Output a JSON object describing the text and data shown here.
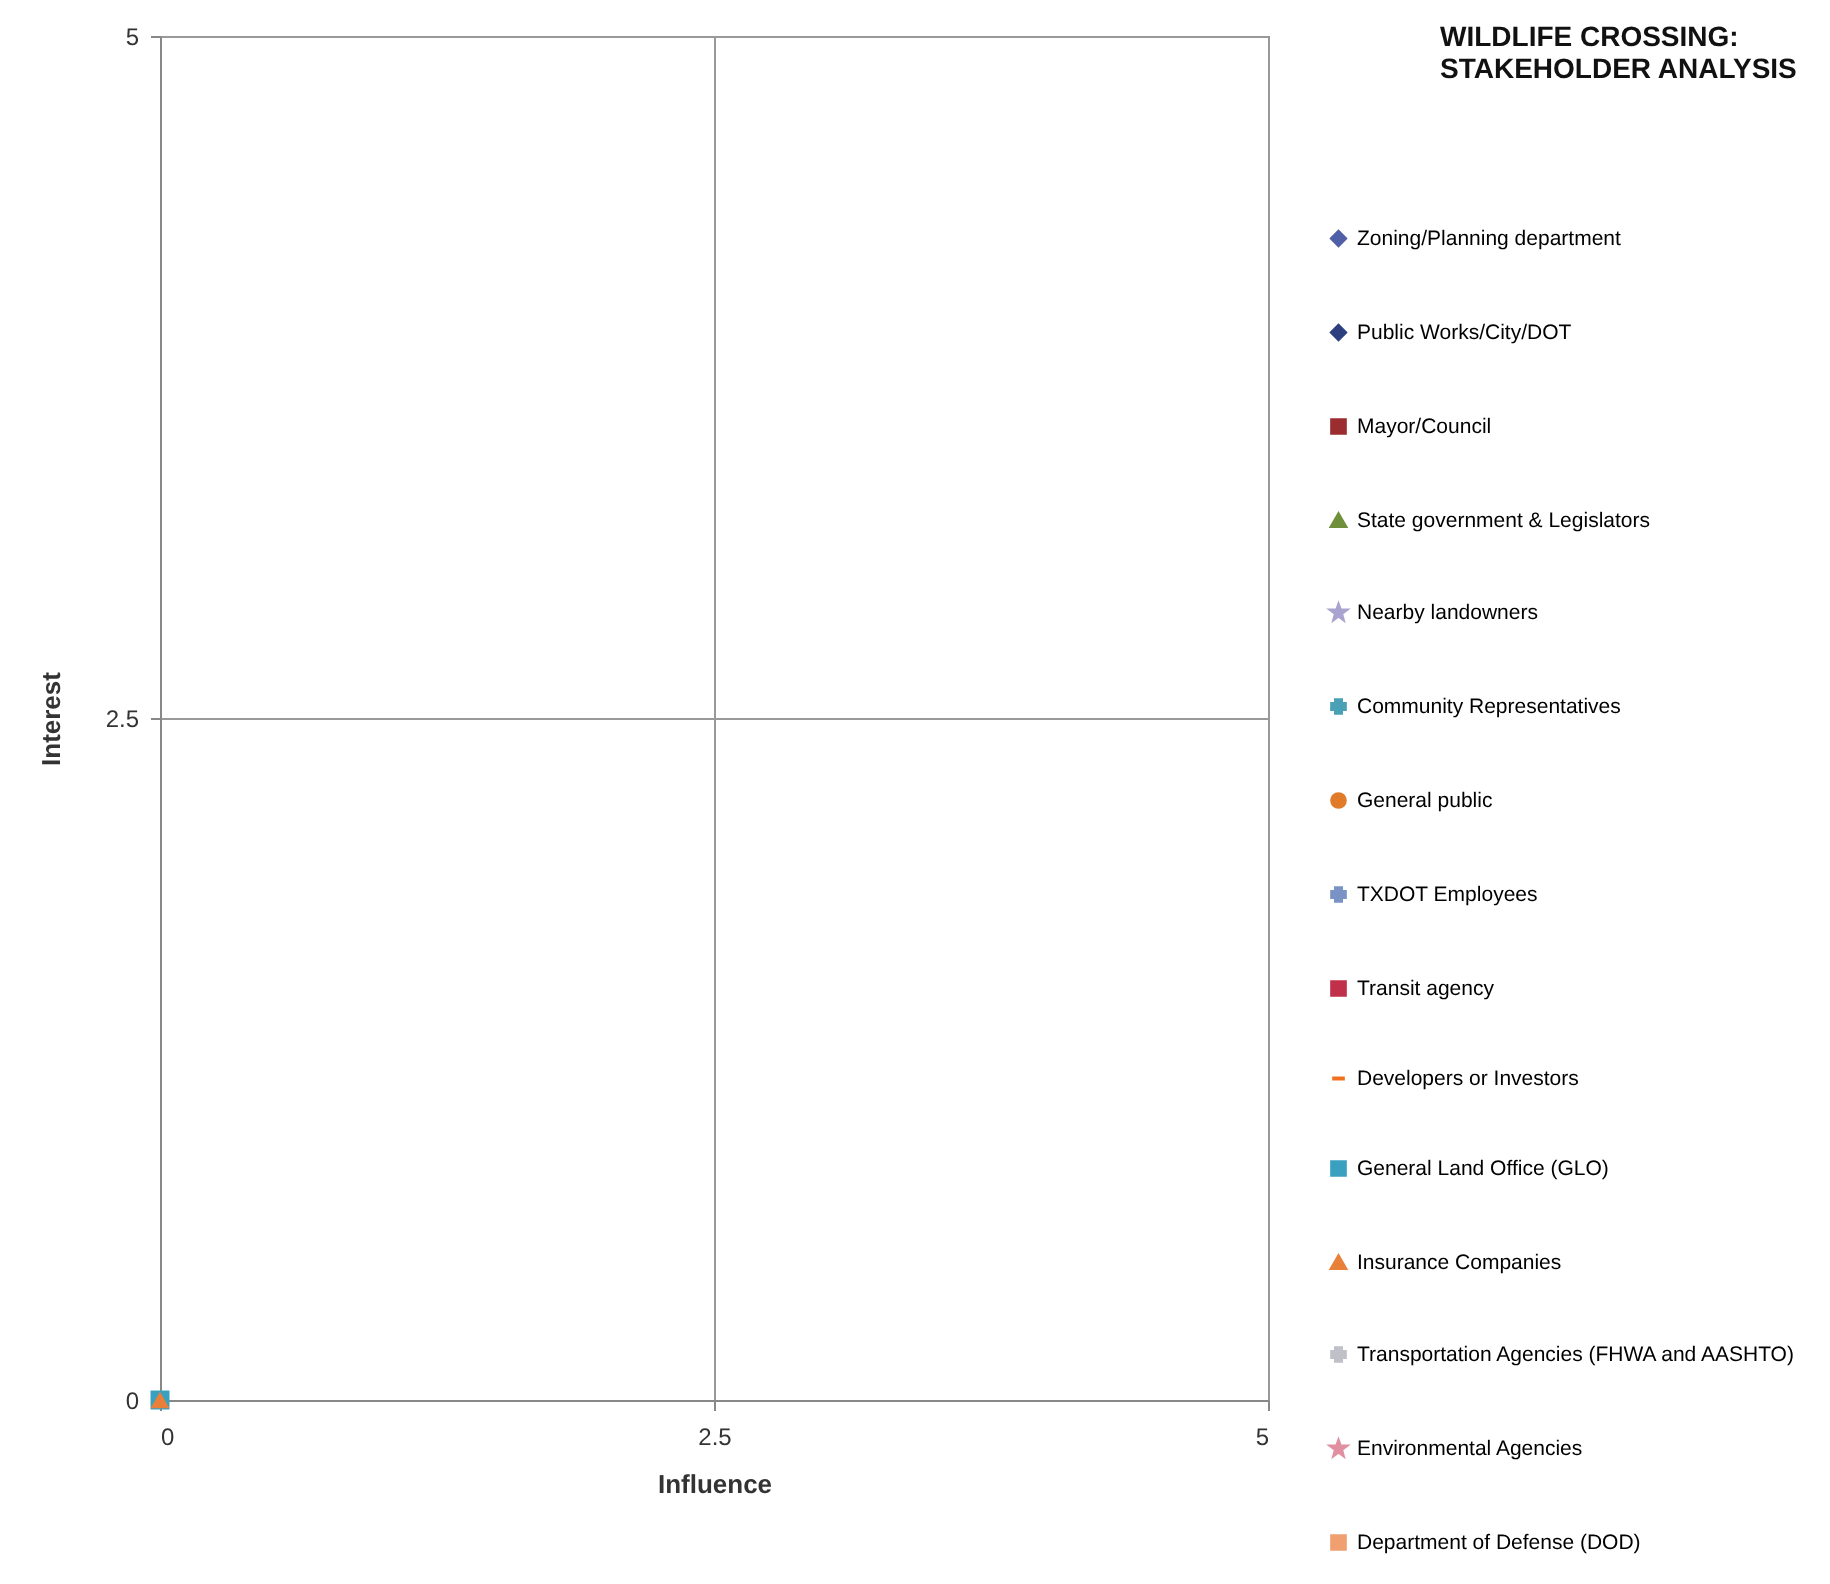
{
  "chart_data": {
    "type": "scatter",
    "title": "WILDLIFE CROSSING: STAKEHOLDER ANALYSIS",
    "xlabel": "Influence",
    "ylabel": "Interest",
    "x": [
      0
    ],
    "xlim": [
      0,
      5
    ],
    "xticks": [
      0,
      2.5,
      5
    ],
    "ylim": [
      0,
      5
    ],
    "yticks": [
      0,
      2.5,
      5
    ],
    "grid": true,
    "legend": "right",
    "series": [
      {
        "name": "Zoning/Planning department",
        "color": "#4f5fa8",
        "marker": "diamond",
        "values": [
          null
        ]
      },
      {
        "name": "Public Works/City/DOT",
        "color": "#2e3f7f",
        "marker": "diamond",
        "values": [
          null
        ]
      },
      {
        "name": "Mayor/Council",
        "color": "#9b2d30",
        "marker": "square",
        "values": [
          null
        ]
      },
      {
        "name": "State government & Legislators",
        "color": "#6f8f3a",
        "marker": "triangle",
        "values": [
          null
        ]
      },
      {
        "name": "Nearby landowners",
        "color": "#a9a3d0",
        "marker": "star",
        "values": [
          null
        ]
      },
      {
        "name": "Community Representatives",
        "color": "#4aa0b5",
        "marker": "cross",
        "values": [
          null
        ]
      },
      {
        "name": "General public",
        "color": "#e07b2a",
        "marker": "circle",
        "values": [
          null
        ]
      },
      {
        "name": "TXDOT Employees",
        "color": "#7a93c4",
        "marker": "cross",
        "values": [
          null
        ]
      },
      {
        "name": "Transit agency",
        "color": "#c0304a",
        "marker": "square",
        "values": [
          null
        ]
      },
      {
        "name": "Developers or Investors",
        "color": "#f07020",
        "type": "line",
        "marker": "none",
        "values": [
          null
        ]
      },
      {
        "name": "General Land Office (GLO)",
        "color": "#3aa0c0",
        "marker": "square",
        "values": [
          0
        ]
      },
      {
        "name": "Insurance Companies",
        "color": "#e8803a",
        "marker": "triangle",
        "values": [
          0
        ]
      },
      {
        "name": "Transportation Agencies (FHWA and AASHTO)",
        "color": "#c0c0c8",
        "marker": "cross",
        "values": [
          null
        ]
      },
      {
        "name": "Environmental Agencies",
        "color": "#e090a0",
        "marker": "star",
        "values": [
          null
        ]
      },
      {
        "name": "Department of Defense (DOD)",
        "color": "#f0a070",
        "marker": "square",
        "values": [
          null
        ]
      }
    ]
  }
}
